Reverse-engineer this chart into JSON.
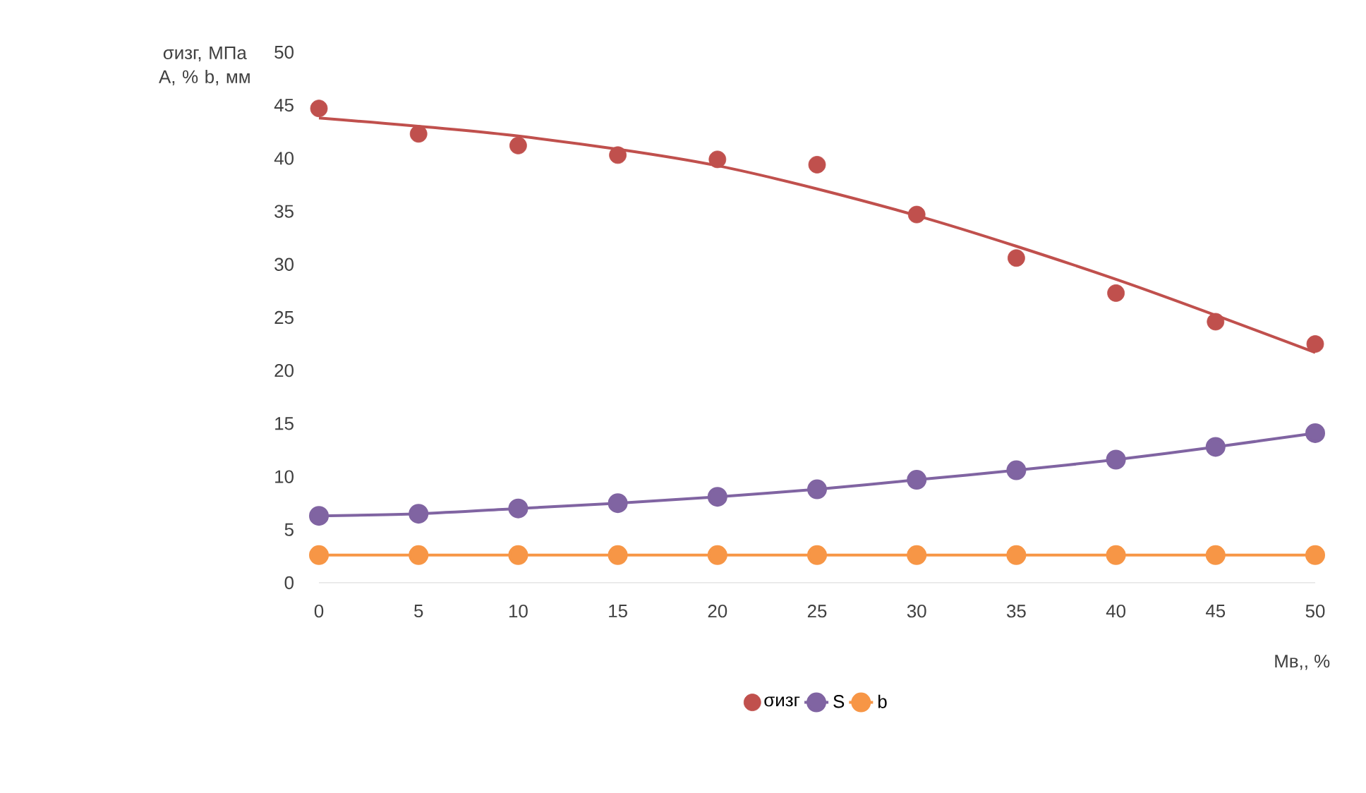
{
  "chart_data": {
    "type": "scatter",
    "ylabel": "σизг, МПа A, % b, мм",
    "xlabel": "Мв,, %",
    "xlim": [
      0,
      50
    ],
    "ylim": [
      0,
      50
    ],
    "xticks": [
      0,
      5,
      10,
      15,
      20,
      25,
      30,
      35,
      40,
      45,
      50
    ],
    "yticks": [
      0,
      5,
      10,
      15,
      20,
      25,
      30,
      35,
      40,
      45,
      50
    ],
    "legend": "bottom",
    "marker": "circle",
    "series": [
      {
        "name": "σизг",
        "color": "#c0504d",
        "x": [
          0,
          5,
          10,
          15,
          20,
          25,
          30,
          35,
          40,
          45,
          50
        ],
        "values": [
          44.7,
          42.3,
          41.2,
          40.3,
          39.9,
          39.4,
          34.7,
          30.6,
          27.3,
          24.6,
          22.5
        ]
      },
      {
        "name": "S",
        "color": "#8064a2",
        "type": "line",
        "x": [
          0,
          5,
          10,
          15,
          20,
          25,
          30,
          35,
          40,
          45,
          50
        ],
        "values": [
          6.3,
          6.5,
          7.0,
          7.5,
          8.1,
          8.8,
          9.7,
          10.6,
          11.6,
          12.8,
          14.1
        ]
      },
      {
        "name": "b",
        "color": "#f79646",
        "type": "line",
        "x": [
          0,
          5,
          10,
          15,
          20,
          25,
          30,
          35,
          40,
          45,
          50
        ],
        "values": [
          2.6,
          2.6,
          2.6,
          2.6,
          2.6,
          2.6,
          2.6,
          2.6,
          2.6,
          2.6,
          2.6
        ]
      },
      {
        "color": "#c0504d",
        "type": "line",
        "marker": "none",
        "x": [
          0,
          10,
          20,
          30,
          40,
          50
        ],
        "values": [
          43.8,
          42.1,
          39.3,
          34.6,
          28.6,
          21.7
        ]
      }
    ]
  }
}
